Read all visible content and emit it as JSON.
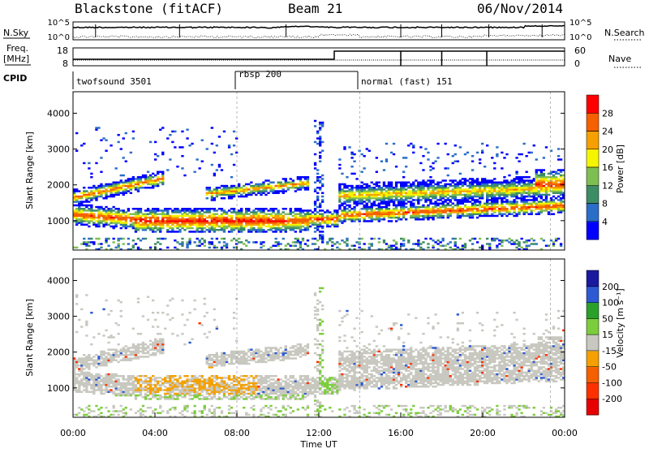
{
  "header": {
    "station": "Blackstone (fitACF)",
    "beam": "Beam 21",
    "date": "06/Nov/2014"
  },
  "left_labels": {
    "nsky": "N.Sky",
    "freq_line1": "Freq.",
    "freq_line2": "[MHz]",
    "cpid": "CPID"
  },
  "right_labels": {
    "nsearch": "N.Search",
    "nave": "Nave"
  },
  "chart_data": [
    {
      "type": "line",
      "name": "noise-panel",
      "left_ticks": [
        "10^5",
        "10^0"
      ],
      "right_ticks": [
        "10^5",
        "10^0"
      ],
      "series": [
        {
          "name": "N.Sky"
        },
        {
          "name": "N.Search"
        }
      ]
    },
    {
      "type": "line",
      "name": "freq-nave-panel",
      "left_ticks": [
        "18",
        "8"
      ],
      "right_ticks": [
        "60",
        "0"
      ],
      "series": [
        {
          "name": "Freq."
        },
        {
          "name": "Nave"
        }
      ]
    },
    {
      "type": "table",
      "name": "cpid-panel",
      "segments": [
        {
          "label": "twofsound 3501",
          "start_hour": 0,
          "end_hour": 8.0
        },
        {
          "label": "rbsp 200",
          "start_hour": 8.0,
          "end_hour": 14.0
        },
        {
          "label": "normal (fast) 151",
          "start_hour": 14.0,
          "end_hour": 24
        }
      ]
    },
    {
      "type": "heatmap",
      "name": "power-panel",
      "ylabel": "Slant Range [km]",
      "yticks": [
        "1000",
        "2000",
        "3000",
        "4000"
      ],
      "ylim": [
        180,
        4600
      ],
      "xlim": [
        0,
        24
      ],
      "colorbar": {
        "label": "Power [dB]",
        "ticks": [
          "4",
          "8",
          "12",
          "16",
          "20",
          "24",
          "28"
        ],
        "colors": [
          "#0000ff",
          "#2a6ec8",
          "#3c8c64",
          "#7fbf52",
          "#f5f500",
          "#f5a000",
          "#f56000",
          "#ff0000"
        ]
      }
    },
    {
      "type": "heatmap",
      "name": "velocity-panel",
      "ylabel": "Slant Range [km]",
      "yticks": [
        "1000",
        "2000",
        "3000",
        "4000"
      ],
      "ylim": [
        180,
        4600
      ],
      "xlim": [
        0,
        24
      ],
      "xlabel": "Time UT",
      "xticks": [
        "00:00",
        "04:00",
        "08:00",
        "12:00",
        "16:00",
        "20:00",
        "00:00"
      ],
      "colorbar": {
        "label": "Velocity [m s⁻¹]",
        "ticks": [
          "200",
          "100",
          "50",
          "15",
          "-15",
          "-50",
          "-100",
          "-200"
        ],
        "colors": [
          "#1a1aa0",
          "#2d5ad2",
          "#2aa02a",
          "#7ccd3c",
          "#c8c8c0",
          "#f5a000",
          "#f56000",
          "#ff3000",
          "#e60000"
        ]
      }
    }
  ]
}
